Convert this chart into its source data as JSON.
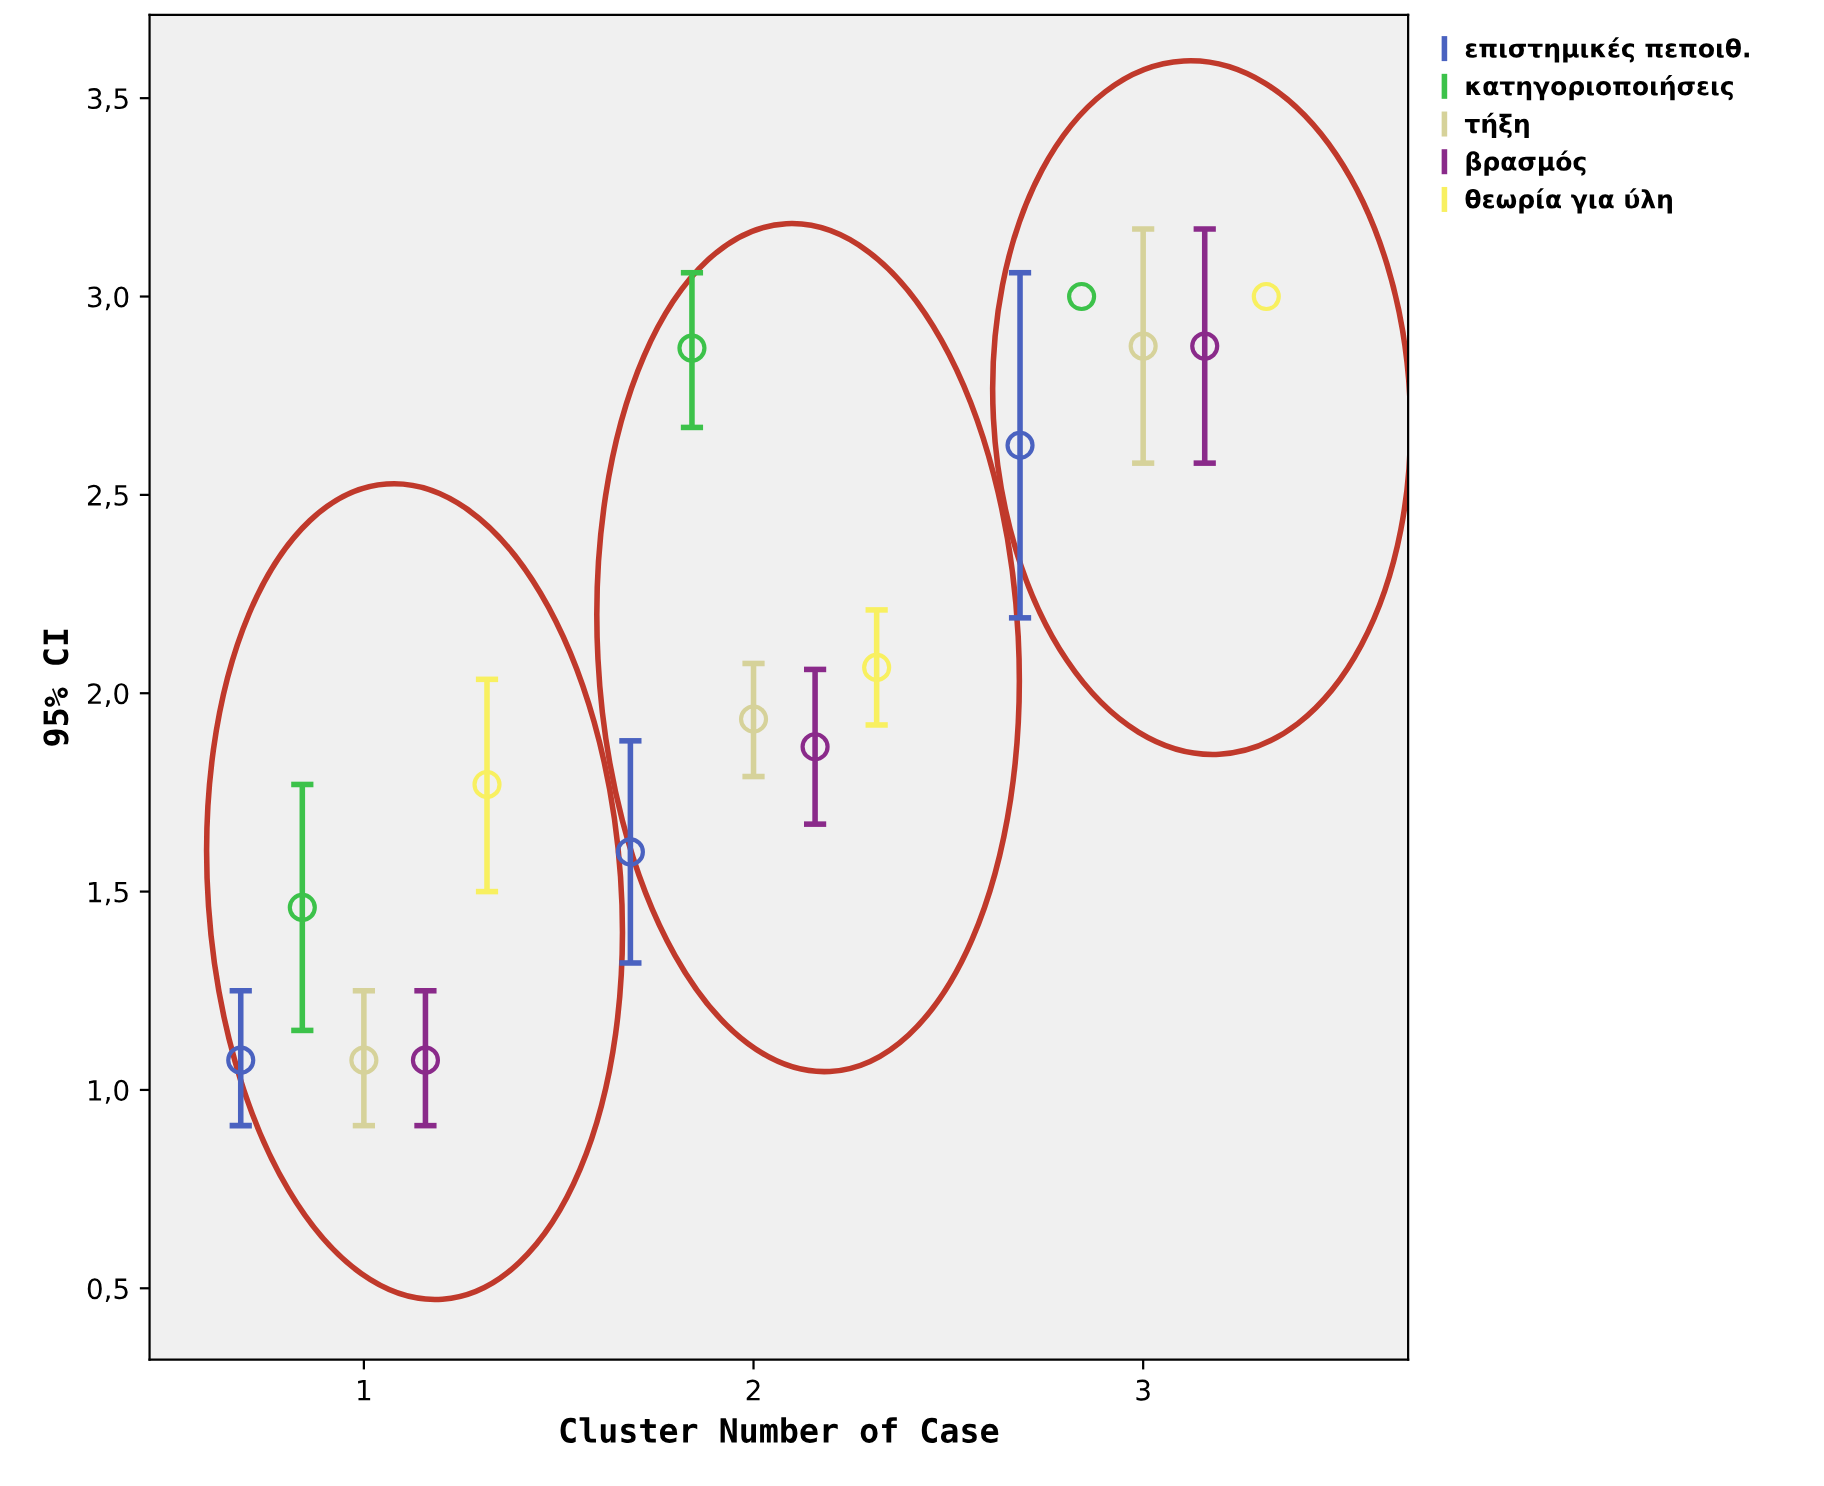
{
  "chart_data": {
    "type": "scatter",
    "xlabel": "Cluster Number of Case",
    "ylabel": "95% CI",
    "categories": [
      "1",
      "2",
      "3"
    ],
    "series": [
      {
        "name": "επιστημικές πεποιθ.",
        "color": "#4a62c0",
        "values": [
          1.075,
          1.6,
          2.625
        ],
        "errors": [
          [
            0.91,
            1.25
          ],
          [
            1.32,
            1.88
          ],
          [
            2.19,
            3.06
          ]
        ]
      },
      {
        "name": "κατηγοριοποιήσεις",
        "color": "#3cc24a",
        "values": [
          1.46,
          2.87,
          3.0
        ],
        "errors": [
          [
            1.15,
            1.77
          ],
          [
            2.67,
            3.06
          ],
          null
        ]
      },
      {
        "name": "τήξη",
        "color": "#d6d29a",
        "values": [
          1.075,
          1.935,
          2.875
        ],
        "errors": [
          [
            0.91,
            1.25
          ],
          [
            1.79,
            2.075
          ],
          [
            2.58,
            3.17
          ]
        ]
      },
      {
        "name": "βρασμός",
        "color": "#8a2a8a",
        "values": [
          1.075,
          1.865,
          2.875
        ],
        "errors": [
          [
            0.91,
            1.25
          ],
          [
            1.67,
            2.06
          ],
          [
            2.58,
            3.17
          ]
        ]
      },
      {
        "name": "θεωρία για ύλη",
        "color": "#f8f060",
        "values": [
          1.77,
          2.065,
          3.0
        ],
        "errors": [
          [
            1.5,
            2.035
          ],
          [
            1.92,
            2.21
          ],
          null
        ]
      }
    ],
    "ylim": [
      0.32,
      3.71
    ],
    "yticks": [
      {
        "value": 0.5,
        "label": "0,5"
      },
      {
        "value": 1.0,
        "label": "1,0"
      },
      {
        "value": 1.5,
        "label": "1,5"
      },
      {
        "value": 2.0,
        "label": "2,0"
      },
      {
        "value": 2.5,
        "label": "2,5"
      },
      {
        "value": 3.0,
        "label": "3,0"
      },
      {
        "value": 3.5,
        "label": "3,5"
      }
    ],
    "marker": "circle",
    "grid": false,
    "legend": "top right"
  }
}
